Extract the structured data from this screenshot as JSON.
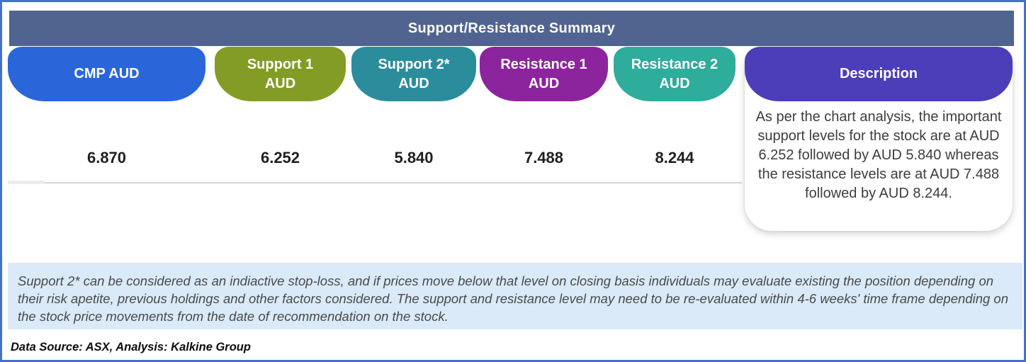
{
  "title": "Support/Resistance Summary",
  "theme": {
    "frame_border": "#4472c4",
    "titlebar_bg": "#50648f",
    "footnote_bg": "#daeaf8"
  },
  "table": {
    "columns": [
      {
        "id": "cmp",
        "label_line1": "CMP AUD",
        "label_line2": "",
        "color": "#2a66da",
        "value": "6.870"
      },
      {
        "id": "support1",
        "label_line1": "Support 1",
        "label_line2": "AUD",
        "color": "#839c26",
        "value": "6.252"
      },
      {
        "id": "support2",
        "label_line1": "Support 2*",
        "label_line2": "AUD",
        "color": "#2b8d9c",
        "value": "5.840"
      },
      {
        "id": "resistance1",
        "label_line1": "Resistance 1",
        "label_line2": "AUD",
        "color": "#8c249d",
        "value": "7.488"
      },
      {
        "id": "resistance2",
        "label_line1": "Resistance 2",
        "label_line2": "AUD",
        "color": "#2eac9c",
        "value": "8.244"
      }
    ],
    "description": {
      "header": "Description",
      "color": "#4c3db8",
      "body": "As per the chart analysis, the important support levels for the stock are at AUD 6.252 followed by AUD 5.840 whereas the resistance levels are at AUD 7.488 followed by AUD 8.244."
    }
  },
  "footnote": "Support 2* can be considered as an indiactive stop-loss, and if prices move below that level on closing basis individuals may evaluate existing the position depending on their risk apetite, previous holdings and other factors considered. The support and resistance level may need to be re-evaluated within 4-6 weeks' time frame depending on the stock price movements from the date of recommendation on the stock.",
  "source_note": "Data Source: ASX, Analysis: Kalkine Group"
}
